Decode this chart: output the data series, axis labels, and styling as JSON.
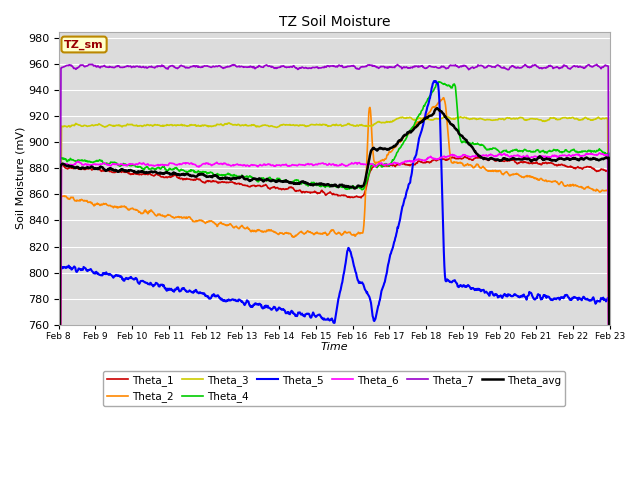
{
  "title": "TZ Soil Moisture",
  "xlabel": "Time",
  "ylabel": "Soil Moisture (mV)",
  "ylim": [
    760,
    985
  ],
  "yticks": [
    760,
    780,
    800,
    820,
    840,
    860,
    880,
    900,
    920,
    940,
    960,
    980
  ],
  "background_color": "#dcdcdc",
  "grid_color": "#ffffff",
  "legend_label": "TZ_sm",
  "series_colors": {
    "Theta_1": "#cc0000",
    "Theta_2": "#ff8800",
    "Theta_3": "#cccc00",
    "Theta_4": "#00cc00",
    "Theta_5": "#0000ff",
    "Theta_6": "#ff00ff",
    "Theta_7": "#9900cc",
    "Theta_avg": "#000000"
  }
}
